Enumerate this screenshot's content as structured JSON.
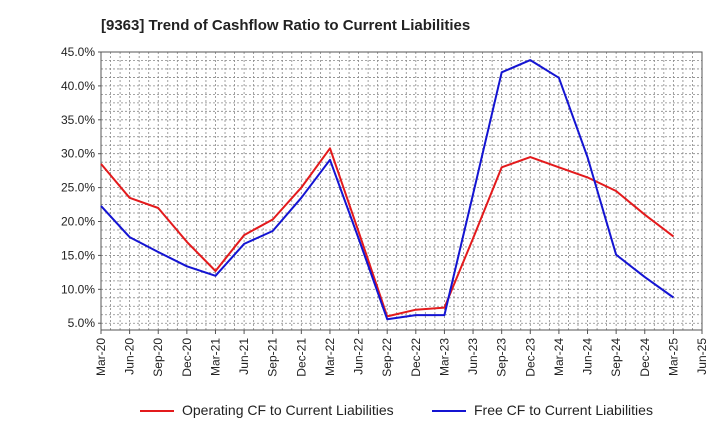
{
  "chart_data": {
    "type": "line",
    "title": "[9363]  Trend of Cashflow Ratio to Current Liabilities",
    "xlabel": "",
    "ylabel": "",
    "x": [
      "Mar-20",
      "Jun-20",
      "Sep-20",
      "Dec-20",
      "Mar-21",
      "Jun-21",
      "Sep-21",
      "Dec-21",
      "Mar-22",
      "Jun-22",
      "Sep-22",
      "Dec-22",
      "Mar-23",
      "Jun-23",
      "Sep-23",
      "Dec-23",
      "Mar-24",
      "Jun-24",
      "Sep-24",
      "Dec-24",
      "Mar-25",
      "Jun-25"
    ],
    "ylim": [
      4.0,
      45.0
    ],
    "yticks": [
      "5.0%",
      "10.0%",
      "15.0%",
      "20.0%",
      "25.0%",
      "30.0%",
      "35.0%",
      "40.0%",
      "45.0%"
    ],
    "ytick_values": [
      5,
      10,
      15,
      20,
      25,
      30,
      35,
      40,
      45
    ],
    "grid": true,
    "legend_position": "bottom",
    "series": [
      {
        "name": "Operating CF to Current Liabilities",
        "color": "#e31a1c",
        "values": [
          28.5,
          23.5,
          22.0,
          17.0,
          12.7,
          18.0,
          20.3,
          25.0,
          30.8,
          18.5,
          6.0,
          7.0,
          7.3,
          17.5,
          28.0,
          29.5,
          28.0,
          26.5,
          24.5,
          21.0,
          17.8,
          null
        ]
      },
      {
        "name": "Free CF to Current Liabilities",
        "color": "#1414d2",
        "values": [
          22.3,
          17.7,
          15.5,
          13.4,
          12.0,
          16.7,
          18.6,
          23.5,
          29.1,
          17.5,
          5.6,
          6.2,
          6.2,
          24.0,
          42.0,
          43.8,
          41.2,
          29.5,
          15.1,
          11.8,
          8.8,
          null
        ]
      }
    ]
  }
}
